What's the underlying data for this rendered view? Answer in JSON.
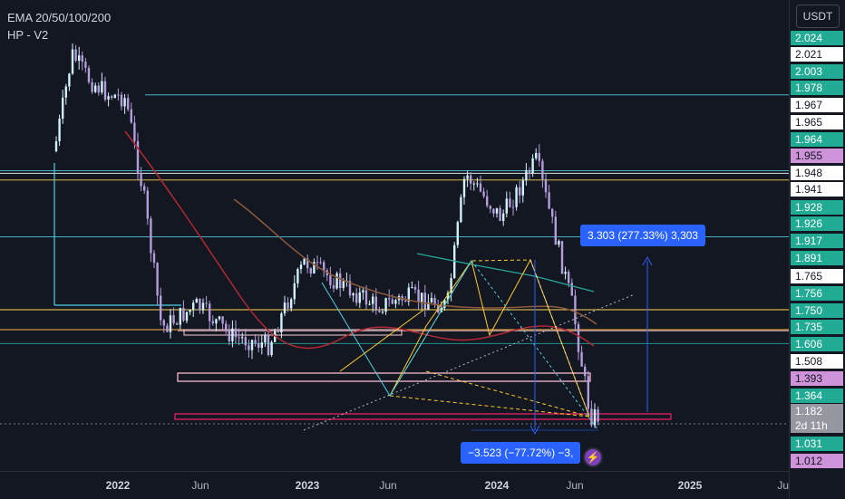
{
  "legend": {
    "indicator": "EMA 20/50/100/200",
    "pattern": "HP - V2"
  },
  "currency": "USDT",
  "price_axis": {
    "labels": [
      {
        "text": "2.024",
        "bg": "#22ab94",
        "fg": "#ffffff"
      },
      {
        "text": "2.021",
        "bg": "#ffffff",
        "fg": "#131722"
      },
      {
        "text": "2.003",
        "bg": "#22ab94",
        "fg": "#ffffff"
      },
      {
        "text": "1.978",
        "bg": "#22ab94",
        "fg": "#ffffff"
      },
      {
        "text": "1.967",
        "bg": "#ffffff",
        "fg": "#131722"
      },
      {
        "text": "1.965",
        "bg": "#ffffff",
        "fg": "#131722"
      },
      {
        "text": "1.964",
        "bg": "#22ab94",
        "fg": "#ffffff"
      },
      {
        "text": "1.955",
        "bg": "#ce93d8",
        "fg": "#131722"
      },
      {
        "text": "1.948",
        "bg": "#ffffff",
        "fg": "#131722"
      },
      {
        "text": "1.941",
        "bg": "#ffffff",
        "fg": "#131722"
      },
      {
        "text": "1.928",
        "bg": "#22ab94",
        "fg": "#ffffff"
      },
      {
        "text": "1.926",
        "bg": "#22ab94",
        "fg": "#ffffff"
      },
      {
        "text": "1.917",
        "bg": "#22ab94",
        "fg": "#ffffff"
      },
      {
        "text": "1.891",
        "bg": "#22ab94",
        "fg": "#ffffff"
      },
      {
        "text": "1.765",
        "bg": "#ffffff",
        "fg": "#131722"
      },
      {
        "text": "1.756",
        "bg": "#22ab94",
        "fg": "#ffffff"
      },
      {
        "text": "1.750",
        "bg": "#22ab94",
        "fg": "#ffffff"
      },
      {
        "text": "1.735",
        "bg": "#22ab94",
        "fg": "#ffffff"
      },
      {
        "text": "1.606",
        "bg": "#22ab94",
        "fg": "#ffffff"
      },
      {
        "text": "1.508",
        "bg": "#ffffff",
        "fg": "#131722"
      },
      {
        "text": "1.393",
        "bg": "#ce93d8",
        "fg": "#131722"
      },
      {
        "text": "1.364",
        "bg": "#22ab94",
        "fg": "#ffffff"
      },
      {
        "text": "1.182",
        "bg": "#9598a1",
        "fg": "#ffffff"
      },
      {
        "text": "2d 11h",
        "bg": "#9598a1",
        "fg": "#ffffff"
      },
      {
        "text": "1.031",
        "bg": "#22ab94",
        "fg": "#ffffff"
      },
      {
        "text": "1.012",
        "bg": "#ce93d8",
        "fg": "#131722"
      }
    ]
  },
  "time_axis": {
    "labels": [
      {
        "text": "2022",
        "year": true
      },
      {
        "text": "Jun",
        "year": false
      },
      {
        "text": "2023",
        "year": true
      },
      {
        "text": "Jun",
        "year": false
      },
      {
        "text": "2024",
        "year": true
      },
      {
        "text": "Jun",
        "year": false
      },
      {
        "text": "2025",
        "year": true
      },
      {
        "text": "Ju",
        "year": false
      }
    ]
  },
  "measurements": {
    "up": "3.303 (277.33%) 3,303",
    "down": "−3.523 (−77.72%) −3,"
  },
  "colors": {
    "background": "#131722",
    "up_candle": "#d1f2f8",
    "down_candle": "#b39ddb",
    "ema_red": "#b22833",
    "ema_orange": "#8d5a3b",
    "ema_teal": "#26a69a",
    "accent_blue": "#2962ff"
  },
  "chart_data": {
    "type": "candlestick",
    "title": "",
    "indicators": [
      "EMA 20/50/100/200",
      "HP - V2"
    ],
    "x_ticks": [
      "2022",
      "Jun",
      "2023",
      "Jun",
      "2024",
      "Jun",
      "2025",
      "Ju"
    ],
    "current_price": 1.182,
    "bar_countdown": "2d 11h",
    "horizontal_levels": [
      1.928,
      1.756,
      1.75,
      1.735,
      1.606,
      1.393,
      1.364,
      1.182,
      1.031
    ],
    "approx_close_path": [
      {
        "t": "2021-12",
        "close": 1.8
      },
      {
        "t": "2022-01",
        "close": 2.02
      },
      {
        "t": "2022-02",
        "close": 1.96
      },
      {
        "t": "2022-03",
        "close": 1.93
      },
      {
        "t": "2022-04",
        "close": 1.92
      },
      {
        "t": "2022-05",
        "close": 1.7
      },
      {
        "t": "2022-06",
        "close": 1.4
      },
      {
        "t": "2022-08",
        "close": 1.45
      },
      {
        "t": "2022-10",
        "close": 1.38
      },
      {
        "t": "2022-12",
        "close": 1.36
      },
      {
        "t": "2023-02",
        "close": 1.55
      },
      {
        "t": "2023-04",
        "close": 1.5
      },
      {
        "t": "2023-06",
        "close": 1.45
      },
      {
        "t": "2023-08",
        "close": 1.47
      },
      {
        "t": "2023-10",
        "close": 1.45
      },
      {
        "t": "2023-11",
        "close": 1.75
      },
      {
        "t": "2024-01",
        "close": 1.65
      },
      {
        "t": "2024-03",
        "close": 1.78
      },
      {
        "t": "2024-05",
        "close": 1.45
      },
      {
        "t": "2024-06",
        "close": 1.2
      }
    ]
  }
}
